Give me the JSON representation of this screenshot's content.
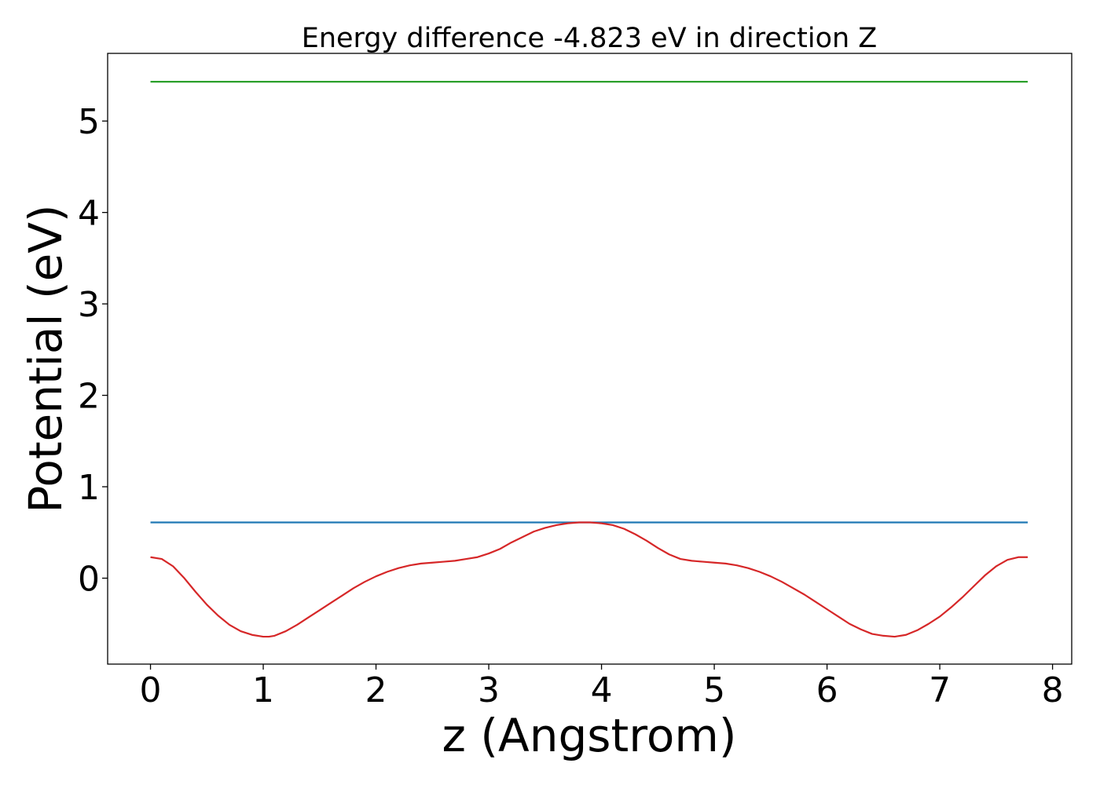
{
  "chart_data": {
    "type": "line",
    "title": "Energy difference -4.823 eV in direction Z",
    "xlabel": "z (Angstrom)",
    "ylabel": "Potential (eV)",
    "xlim": [
      -0.38,
      8.17
    ],
    "ylim": [
      -0.94,
      5.74
    ],
    "xticks": [
      0,
      1,
      2,
      3,
      4,
      5,
      6,
      7,
      8
    ],
    "xtick_labels": [
      "0",
      "1",
      "2",
      "3",
      "4",
      "5",
      "6",
      "7",
      "8"
    ],
    "yticks": [
      0,
      1,
      2,
      3,
      4,
      5
    ],
    "ytick_labels": [
      "0",
      "1",
      "2",
      "3",
      "4",
      "5"
    ],
    "grid": false,
    "legend": "none",
    "series": [
      {
        "color": "#2ca02c",
        "x": [
          0,
          7.78
        ],
        "y": [
          5.43,
          5.43
        ]
      },
      {
        "color": "#1f77b4",
        "x": [
          0,
          7.78
        ],
        "y": [
          0.61,
          0.61
        ]
      },
      {
        "color": "#d62728",
        "x": [
          0,
          0.1,
          0.2,
          0.3,
          0.4,
          0.5,
          0.6,
          0.7,
          0.8,
          0.9,
          1.0,
          1.05,
          1.1,
          1.2,
          1.3,
          1.4,
          1.5,
          1.6,
          1.7,
          1.8,
          1.9,
          2.0,
          2.1,
          2.2,
          2.3,
          2.4,
          2.5,
          2.6,
          2.7,
          2.8,
          2.9,
          3.0,
          3.1,
          3.2,
          3.3,
          3.4,
          3.5,
          3.6,
          3.7,
          3.8,
          3.9,
          4.0,
          4.1,
          4.2,
          4.3,
          4.4,
          4.5,
          4.6,
          4.7,
          4.8,
          4.9,
          5.0,
          5.1,
          5.2,
          5.3,
          5.4,
          5.5,
          5.6,
          5.7,
          5.8,
          5.9,
          6.0,
          6.1,
          6.2,
          6.3,
          6.4,
          6.5,
          6.6,
          6.7,
          6.8,
          6.9,
          7.0,
          7.1,
          7.2,
          7.3,
          7.4,
          7.5,
          7.6,
          7.7,
          7.78
        ],
        "y": [
          0.23,
          0.21,
          0.13,
          0.0,
          -0.15,
          -0.29,
          -0.41,
          -0.51,
          -0.58,
          -0.62,
          -0.64,
          -0.64,
          -0.63,
          -0.58,
          -0.51,
          -0.43,
          -0.35,
          -0.27,
          -0.19,
          -0.11,
          -0.04,
          0.02,
          0.07,
          0.11,
          0.14,
          0.16,
          0.17,
          0.18,
          0.19,
          0.21,
          0.23,
          0.27,
          0.32,
          0.39,
          0.45,
          0.51,
          0.55,
          0.58,
          0.6,
          0.61,
          0.61,
          0.6,
          0.58,
          0.54,
          0.48,
          0.41,
          0.33,
          0.26,
          0.21,
          0.19,
          0.18,
          0.17,
          0.16,
          0.14,
          0.11,
          0.07,
          0.02,
          -0.04,
          -0.11,
          -0.18,
          -0.26,
          -0.34,
          -0.42,
          -0.5,
          -0.56,
          -0.61,
          -0.63,
          -0.64,
          -0.62,
          -0.57,
          -0.5,
          -0.42,
          -0.32,
          -0.21,
          -0.09,
          0.03,
          0.13,
          0.2,
          0.23,
          0.23
        ]
      }
    ]
  }
}
